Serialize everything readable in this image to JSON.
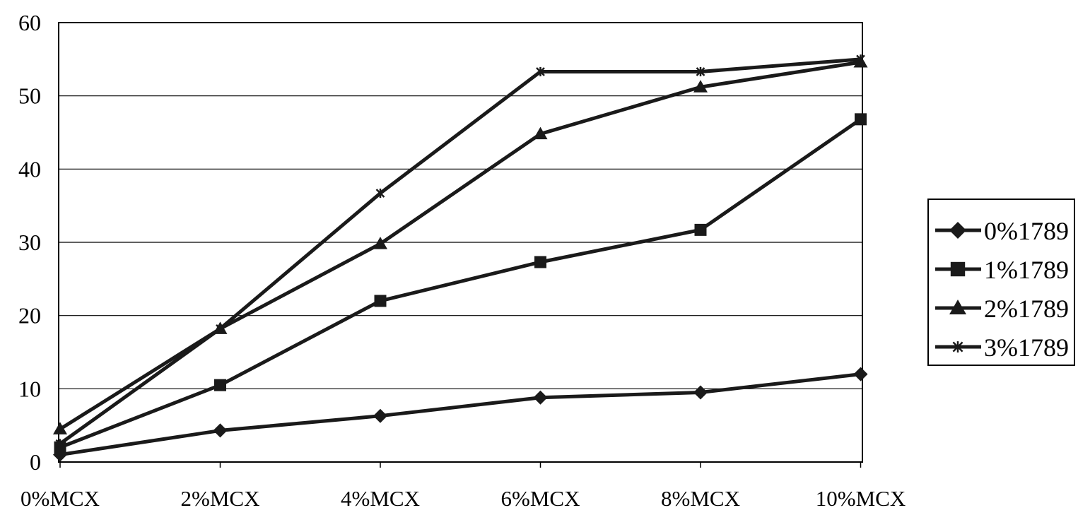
{
  "chart_data": {
    "type": "line",
    "title": "",
    "xlabel": "",
    "ylabel": "",
    "categories": [
      "0%MCX",
      "2%MCX",
      "4%MCX",
      "6%MCX",
      "8%MCX",
      "10%MCX"
    ],
    "ylim": [
      0,
      60
    ],
    "yticks": [
      0,
      10,
      20,
      30,
      40,
      50,
      60
    ],
    "grid": "horizontal",
    "legend_position": "right",
    "series_color": "#1a1a1a",
    "series": [
      {
        "name": "0%1789",
        "marker": "diamond",
        "values": [
          1,
          4.3,
          6.3,
          8.8,
          9.5,
          12
        ]
      },
      {
        "name": "1%1789",
        "marker": "square",
        "values": [
          2,
          10.5,
          22,
          27.3,
          31.7,
          46.8
        ]
      },
      {
        "name": "2%1789",
        "marker": "triangle",
        "values": [
          4.5,
          18.2,
          29.8,
          44.8,
          51.2,
          54.6
        ]
      },
      {
        "name": "3%1789",
        "marker": "star",
        "values": [
          2.5,
          18.2,
          36.7,
          53.3,
          53.3,
          55
        ]
      }
    ]
  }
}
